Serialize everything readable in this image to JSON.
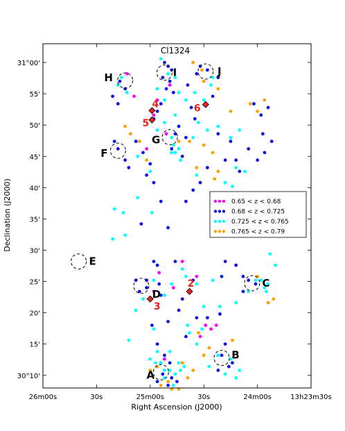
{
  "chart_data": {
    "type": "scatter",
    "title": "Cl1324",
    "xlabel": "Right Ascension (J2000)",
    "ylabel": "Declination (J2000)",
    "x_units": "RA offset from 13h23m30s in seconds of time (axis increases to the left)",
    "xlim": [
      150,
      0
    ],
    "ylim": [
      30.133,
      31.05
    ],
    "x_ticks": [
      {
        "value": 150,
        "label": "26m00s"
      },
      {
        "value": 120,
        "label": "30s"
      },
      {
        "value": 90,
        "label": "25m00s"
      },
      {
        "value": 60,
        "label": "30s"
      },
      {
        "value": 30,
        "label": "24m00s"
      },
      {
        "value": 0,
        "label": "13h23m30s"
      }
    ],
    "y_ticks": [
      {
        "value": 30.1667,
        "label": "30°10'"
      },
      {
        "value": 30.25,
        "label": "15'"
      },
      {
        "value": 30.3333,
        "label": "20'"
      },
      {
        "value": 30.4167,
        "label": "25'"
      },
      {
        "value": 30.5,
        "label": "30'"
      },
      {
        "value": 30.5833,
        "label": "35'"
      },
      {
        "value": 30.6667,
        "label": "40'"
      },
      {
        "value": 30.75,
        "label": "45'"
      },
      {
        "value": 30.8333,
        "label": "50'"
      },
      {
        "value": 30.9167,
        "label": "55'"
      },
      {
        "value": 31.0,
        "label": "31°00'"
      }
    ],
    "legend_position": "right",
    "grid": false,
    "series": [
      {
        "name": "0.65 < z < 0.68",
        "color": "#ff00ff",
        "points": [
          [
            103,
            30.97
          ],
          [
            99,
            30.91
          ],
          [
            86,
            30.9
          ],
          [
            79,
            30.94
          ],
          [
            88,
            30.86
          ],
          [
            92,
            30.77
          ],
          [
            81,
            30.81
          ],
          [
            85,
            30.44
          ],
          [
            72,
            30.47
          ],
          [
            77,
            30.4
          ],
          [
            88,
            30.39
          ],
          [
            64,
            30.43
          ],
          [
            59,
            30.3
          ],
          [
            56,
            30.29
          ],
          [
            53,
            30.3
          ],
          [
            62,
            30.27
          ],
          [
            82,
            30.21
          ]
        ]
      },
      {
        "name": "0.68 < z < 0.725",
        "color": "#0a14e6",
        "points": [
          [
            82,
            31.0
          ],
          [
            80,
            30.99
          ],
          [
            78,
            30.98
          ],
          [
            83,
            30.96
          ],
          [
            79,
            30.95
          ],
          [
            81,
            30.93
          ],
          [
            77,
            30.92
          ],
          [
            84,
            30.89
          ],
          [
            86,
            30.87
          ],
          [
            88,
            30.85
          ],
          [
            74,
            30.83
          ],
          [
            76,
            30.81
          ],
          [
            70,
            30.8
          ],
          [
            67,
            30.88
          ],
          [
            65,
            30.85
          ],
          [
            69,
            30.94
          ],
          [
            64,
            30.97
          ],
          [
            62,
            30.99
          ],
          [
            58,
            30.98
          ],
          [
            55,
            30.91
          ],
          [
            52,
            30.96
          ],
          [
            72,
            30.75
          ],
          [
            78,
            30.77
          ],
          [
            90,
            30.73
          ],
          [
            94,
            30.76
          ],
          [
            98,
            30.79
          ],
          [
            102,
            30.72
          ],
          [
            104,
            30.74
          ],
          [
            108,
            30.77
          ],
          [
            110,
            30.79
          ],
          [
            107,
            30.95
          ],
          [
            104,
            30.93
          ],
          [
            111,
            30.91
          ],
          [
            108,
            30.89
          ],
          [
            52,
            30.81
          ],
          [
            45,
            30.79
          ],
          [
            48,
            30.74
          ],
          [
            42,
            30.74
          ],
          [
            40,
            30.71
          ],
          [
            35,
            30.77
          ],
          [
            30,
            30.74
          ],
          [
            26,
            30.76
          ],
          [
            28,
            30.86
          ],
          [
            32,
            30.89
          ],
          [
            24,
            30.88
          ],
          [
            27,
            30.81
          ],
          [
            22,
            30.79
          ],
          [
            58,
            30.72
          ],
          [
            62,
            30.68
          ],
          [
            66,
            30.66
          ],
          [
            70,
            30.63
          ],
          [
            88,
            30.68
          ],
          [
            84,
            30.63
          ],
          [
            92,
            30.7
          ],
          [
            95,
            30.57
          ],
          [
            80,
            30.56
          ],
          [
            48,
            30.47
          ],
          [
            42,
            30.46
          ],
          [
            38,
            30.43
          ],
          [
            50,
            30.43
          ],
          [
            76,
            30.47
          ],
          [
            86,
            30.46
          ],
          [
            66,
            30.42
          ],
          [
            84,
            30.38
          ],
          [
            96,
            30.39
          ],
          [
            98,
            30.42
          ],
          [
            92,
            30.4
          ],
          [
            72,
            30.37
          ],
          [
            74,
            30.34
          ],
          [
            89,
            30.3
          ],
          [
            80,
            30.31
          ],
          [
            64,
            30.32
          ],
          [
            70,
            30.27
          ],
          [
            58,
            30.32
          ],
          [
            51,
            30.33
          ],
          [
            48,
            30.25
          ],
          [
            86,
            30.25
          ],
          [
            82,
            30.22
          ],
          [
            79,
            30.2
          ],
          [
            83,
            30.17
          ],
          [
            86,
            30.15
          ],
          [
            78,
            30.16
          ],
          [
            80,
            30.14
          ],
          [
            75,
            30.15
          ],
          [
            50,
            30.22
          ],
          [
            44,
            30.2
          ],
          [
            46,
            30.19
          ],
          [
            52,
            30.18
          ],
          [
            31,
            30.41
          ],
          [
            28,
            30.42
          ],
          [
            35,
            30.42
          ],
          [
            38,
            30.39
          ],
          [
            92,
            30.42
          ],
          [
            88,
            30.47
          ],
          [
            85,
            30.41
          ]
        ]
      },
      {
        "name": "0.725 < z < 0.765",
        "color": "#00ffff",
        "points": [
          [
            84,
            31.01
          ],
          [
            80,
            30.97
          ],
          [
            76,
            30.96
          ],
          [
            86,
            30.93
          ],
          [
            74,
            30.92
          ],
          [
            70,
            30.9
          ],
          [
            82,
            30.9
          ],
          [
            65,
            30.92
          ],
          [
            60,
            30.9
          ],
          [
            56,
            30.94
          ],
          [
            55,
            30.96
          ],
          [
            76,
            30.86
          ],
          [
            82,
            30.84
          ],
          [
            86,
            30.82
          ],
          [
            78,
            30.8
          ],
          [
            66,
            30.8
          ],
          [
            63,
            30.84
          ],
          [
            58,
            30.82
          ],
          [
            52,
            30.83
          ],
          [
            45,
            30.8
          ],
          [
            40,
            30.82
          ],
          [
            37,
            30.71
          ],
          [
            42,
            30.72
          ],
          [
            44,
            30.67
          ],
          [
            48,
            30.68
          ],
          [
            46,
            30.65
          ],
          [
            50,
            30.63
          ],
          [
            56,
            30.65
          ],
          [
            64,
            30.7
          ],
          [
            73,
            30.74
          ],
          [
            74,
            30.77
          ],
          [
            77,
            30.78
          ],
          [
            76,
            30.76
          ],
          [
            78,
            30.76
          ],
          [
            89,
            30.6
          ],
          [
            90,
            30.71
          ],
          [
            97,
            30.64
          ],
          [
            105,
            30.6
          ],
          [
            110,
            30.61
          ],
          [
            111,
            30.53
          ],
          [
            104,
            30.54
          ],
          [
            97,
            30.75
          ],
          [
            108,
            30.94
          ],
          [
            106,
            30.96
          ],
          [
            103,
            30.92
          ],
          [
            46,
            30.61
          ],
          [
            36,
            30.64
          ],
          [
            34,
            30.6
          ],
          [
            26,
            30.59
          ],
          [
            21,
            30.61
          ],
          [
            20,
            30.46
          ],
          [
            23,
            30.49
          ],
          [
            28,
            30.42
          ],
          [
            31,
            30.42
          ],
          [
            24,
            30.41
          ],
          [
            26,
            30.4
          ],
          [
            25,
            30.39
          ],
          [
            35,
            30.39
          ],
          [
            42,
            30.36
          ],
          [
            51,
            30.35
          ],
          [
            60,
            30.35
          ],
          [
            88,
            30.42
          ],
          [
            90,
            30.37
          ],
          [
            94,
            30.37
          ],
          [
            82,
            30.38
          ],
          [
            78,
            30.41
          ],
          [
            64,
            30.41
          ],
          [
            55,
            30.42
          ],
          [
            70,
            30.43
          ],
          [
            72,
            30.45
          ],
          [
            98,
            30.34
          ],
          [
            88,
            30.29
          ],
          [
            102,
            30.26
          ],
          [
            86,
            30.23
          ],
          [
            90,
            30.21
          ],
          [
            87,
            30.2
          ],
          [
            84,
            30.2
          ],
          [
            82,
            30.18
          ],
          [
            79,
            30.18
          ],
          [
            82,
            30.16
          ],
          [
            77,
            30.14
          ],
          [
            76,
            30.17
          ],
          [
            73,
            30.18
          ],
          [
            71,
            30.19
          ],
          [
            74,
            30.2
          ],
          [
            79,
            30.23
          ],
          [
            52,
            30.22
          ],
          [
            57,
            30.19
          ],
          [
            48,
            30.17
          ],
          [
            42,
            30.16
          ],
          [
            40,
            30.18
          ],
          [
            45,
            30.21
          ],
          [
            64,
            30.25
          ],
          [
            68,
            30.28
          ],
          [
            61,
            30.29
          ],
          [
            69,
            30.3
          ]
        ]
      },
      {
        "name": "0.765 < z < 0.79",
        "color": "#ffa000",
        "points": [
          [
            66,
            31.0
          ],
          [
            61,
            30.98
          ],
          [
            60,
            30.95
          ],
          [
            52,
            30.93
          ],
          [
            45,
            30.87
          ],
          [
            26,
            30.9
          ],
          [
            30,
            30.87
          ],
          [
            34,
            30.89
          ],
          [
            101,
            30.81
          ],
          [
            104,
            30.83
          ],
          [
            96,
            30.79
          ],
          [
            92,
            30.74
          ],
          [
            74,
            30.79
          ],
          [
            68,
            30.79
          ],
          [
            64,
            30.72
          ],
          [
            60,
            30.78
          ],
          [
            55,
            30.76
          ],
          [
            52,
            30.71
          ],
          [
            54,
            30.69
          ],
          [
            51,
            30.65
          ],
          [
            46,
            30.62
          ],
          [
            50,
            30.59
          ],
          [
            46,
            30.59
          ],
          [
            30,
            30.43
          ],
          [
            21,
            30.37
          ],
          [
            24,
            30.36
          ],
          [
            63,
            30.28
          ],
          [
            57,
            30.24
          ],
          [
            60,
            30.22
          ],
          [
            44,
            30.26
          ],
          [
            90,
            30.18
          ],
          [
            86,
            30.19
          ],
          [
            84,
            30.14
          ],
          [
            78,
            30.13
          ],
          [
            80,
            30.15
          ],
          [
            74,
            30.13
          ],
          [
            69,
            30.16
          ],
          [
            72,
            30.2
          ],
          [
            66,
            30.18
          ]
        ]
      }
    ],
    "bcg_markers": [
      {
        "label": "2",
        "x": 68,
        "y": 30.39
      },
      {
        "label": "3",
        "x": 90,
        "y": 30.37
      },
      {
        "label": "4",
        "x": 89,
        "y": 30.872
      },
      {
        "label": "5",
        "x": 89,
        "y": 30.847
      },
      {
        "label": "6",
        "x": 59,
        "y": 30.888
      }
    ],
    "groups": [
      {
        "label": "A",
        "x": 84,
        "y": 30.175,
        "r": 7,
        "label_dx": -15,
        "label_dy": 4
      },
      {
        "label": "B",
        "x": 50,
        "y": 30.213,
        "r": 7,
        "label_dx": 20,
        "label_dy": -4
      },
      {
        "label": "C",
        "x": 33,
        "y": 30.412,
        "r": 7,
        "label_dx": 20,
        "label_dy": 0
      },
      {
        "label": "D",
        "x": 95,
        "y": 30.405,
        "r": 6,
        "label_dx": 22,
        "label_dy": 12
      },
      {
        "label": "E",
        "x": 130,
        "y": 30.47,
        "r": 6,
        "label_dx": 20,
        "label_dy": 0
      },
      {
        "label": "F",
        "x": 108,
        "y": 30.765,
        "r": 6,
        "label_dx": -20,
        "label_dy": 4
      },
      {
        "label": "G",
        "x": 79,
        "y": 30.801,
        "r": 7,
        "label_dx": -20,
        "label_dy": 4
      },
      {
        "label": "H",
        "x": 104,
        "y": 30.952,
        "r": 6,
        "label_dx": -24,
        "label_dy": -4
      },
      {
        "label": "I",
        "x": 82,
        "y": 30.973,
        "r": 8,
        "label_dx": 15,
        "label_dy": 0
      },
      {
        "label": "J",
        "x": 59,
        "y": 30.976,
        "r": 7,
        "label_dx": 20,
        "label_dy": 0
      }
    ]
  }
}
